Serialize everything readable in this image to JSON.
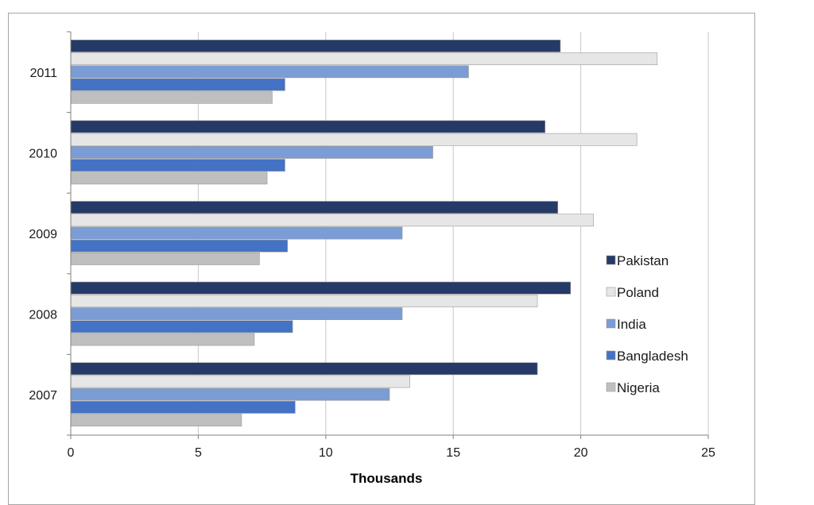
{
  "chart_data": {
    "type": "bar",
    "orientation": "horizontal",
    "categories": [
      "2007",
      "2008",
      "2009",
      "2010",
      "2011"
    ],
    "xlabel": "Thousands",
    "ylabel": "",
    "xlim": [
      0,
      25
    ],
    "xticks": [
      0,
      5,
      10,
      15,
      20,
      25
    ],
    "grid": "vertical",
    "legend_position": "right",
    "series": [
      {
        "name": "Pakistan",
        "color": "#253a66",
        "values": [
          18.3,
          19.6,
          19.1,
          18.6,
          19.2
        ]
      },
      {
        "name": "Poland",
        "color": "#e6e6e6",
        "values": [
          13.3,
          18.3,
          20.5,
          22.2,
          23.0
        ]
      },
      {
        "name": "India",
        "color": "#7b9cd4",
        "values": [
          12.5,
          13.0,
          13.0,
          14.2,
          15.6
        ]
      },
      {
        "name": "Bangladesh",
        "color": "#4472c4",
        "values": [
          8.8,
          8.7,
          8.5,
          8.4,
          8.4
        ]
      },
      {
        "name": "Nigeria",
        "color": "#bfbfbf",
        "values": [
          6.7,
          7.2,
          7.4,
          7.7,
          7.9
        ]
      }
    ]
  }
}
